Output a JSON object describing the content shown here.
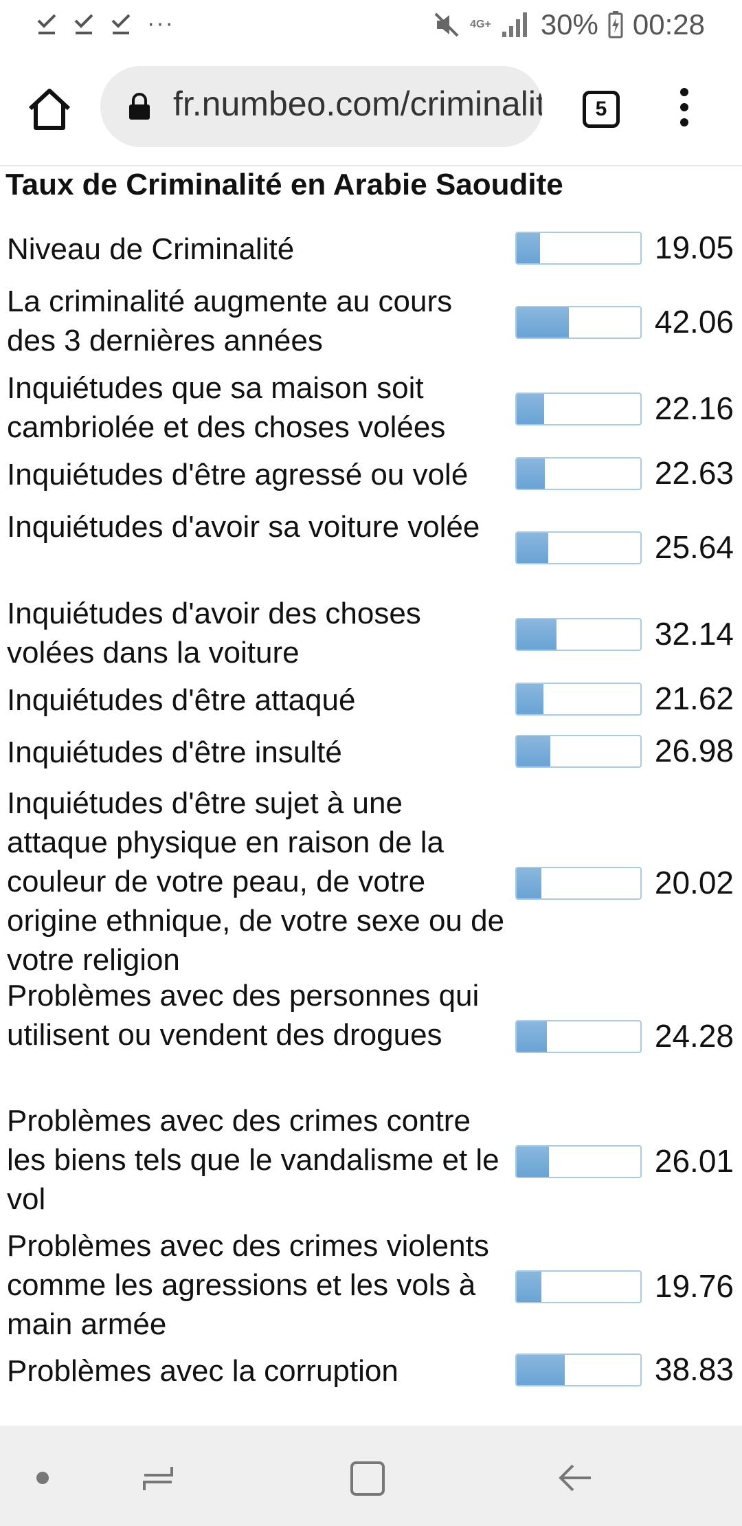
{
  "status_bar": {
    "left_icons": [
      "download-done-icon",
      "download-done-icon",
      "download-done-icon"
    ],
    "more_dots": "···",
    "network_label": "4G+",
    "battery": "30%",
    "time": "00:28"
  },
  "browser": {
    "url": "fr.numbeo.com/criminalite/pays/Arabie-Saoudite",
    "tab_count": "5"
  },
  "page": {
    "title": "Taux de Criminalité en Arabie Saoudite",
    "rows": [
      {
        "label": "Niveau de Criminalité",
        "value": "19.05",
        "level": 19.05
      },
      {
        "label": "La criminalité augmente au cours des 3 dernières années",
        "value": "42.06",
        "level": 42.06
      },
      {
        "label": "Inquiétudes que sa maison soit cambriolée et des choses volées",
        "value": "22.16",
        "level": 22.16
      },
      {
        "label": "Inquiétudes d'être agressé ou volé",
        "value": "22.63",
        "level": 22.63
      },
      {
        "label": "Inquiétudes d'avoir sa voiture volée",
        "value": "25.64",
        "level": 25.64
      },
      {
        "label": "Inquiétudes d'avoir des choses volées dans la voiture",
        "value": "32.14",
        "level": 32.14
      },
      {
        "label": "Inquiétudes d'être attaqué",
        "value": "21.62",
        "level": 21.62
      },
      {
        "label": "Inquiétudes d'être insulté",
        "value": "26.98",
        "level": 26.98
      },
      {
        "label": "Inquiétudes d'être sujet à une attaque physique en raison de la couleur de votre peau, de votre origine ethnique, de votre sexe ou de votre religion",
        "value": "20.02",
        "level": 20.02
      },
      {
        "label": "Problèmes avec des personnes qui utilisent ou vendent des drogues",
        "value": "24.28",
        "level": 24.28
      },
      {
        "label": "Problèmes avec des crimes contre les biens tels que le vandalisme et le vol",
        "value": "26.01",
        "level": 26.01
      },
      {
        "label": "Problèmes avec des crimes violents comme les agressions et les vols à main armée",
        "value": "19.76",
        "level": 19.76
      },
      {
        "label": "Problèmes avec la corruption",
        "value": "38.83",
        "level": 38.83
      }
    ]
  },
  "nav_bar": {
    "items": [
      "nav-dot-icon",
      "recent-apps-icon",
      "home-square-icon",
      "back-arrow-icon"
    ]
  },
  "colors": {
    "bar_fill": "#6aa3d5",
    "bar_border": "#a9cbe3",
    "nav_bg": "#efefef"
  }
}
